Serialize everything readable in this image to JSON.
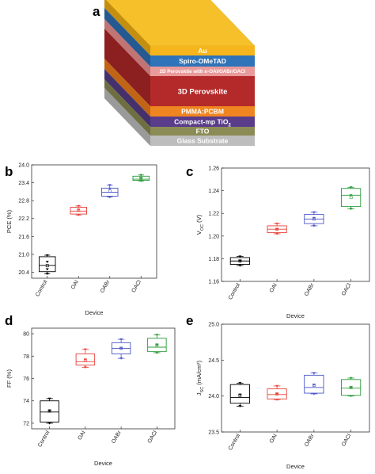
{
  "figure": {
    "panel_letters": [
      "a",
      "b",
      "c",
      "d",
      "e"
    ]
  },
  "stack": {
    "layers": [
      {
        "label": "Au",
        "front": "#f6b51c",
        "side": "#c48e10"
      },
      {
        "label": "Spiro-OMeTAD",
        "front": "#2f73b8",
        "side": "#245a91"
      },
      {
        "label": "2D Perovskite with n-OAI/OABr/OACl",
        "front": "#e99a9a",
        "side": "#c07474"
      },
      {
        "label": "3D Perovskite",
        "front": "#b42a2a",
        "side": "#8c1f1f"
      },
      {
        "label": "PMMA:PCBM",
        "front": "#ef8520",
        "side": "#c06515"
      },
      {
        "label": "Compact-mp TiO",
        "label_sub": "2",
        "front": "#5a3d8a",
        "side": "#44306a"
      },
      {
        "label": "FTO",
        "front": "#8b8b56",
        "side": "#6e6e42"
      },
      {
        "label": "Glass Substrate",
        "front": "#bdbdbd",
        "side": "#9a9a9a"
      }
    ]
  },
  "chart_data": [
    {
      "type": "box",
      "panel": "b",
      "xlabel": "Device",
      "ylabel": "PCE (%)",
      "ylim": [
        20.2,
        24.0
      ],
      "yticks": [
        "20.4",
        "21.0",
        "21.6",
        "22.2",
        "22.8",
        "23.4",
        "24.0"
      ],
      "categories": [
        "Control",
        "OAI",
        "OABr",
        "OACl"
      ],
      "colors": [
        "#000000",
        "#e8423a",
        "#4a55c8",
        "#2a9a3a"
      ],
      "boxes": [
        {
          "q1": 20.42,
          "median": 20.63,
          "q3": 20.92,
          "min": 20.35,
          "max": 20.97,
          "mean": 20.62,
          "points": [
            20.35,
            20.5,
            20.75,
            20.97
          ]
        },
        {
          "q1": 22.35,
          "median": 22.45,
          "q3": 22.58,
          "min": 22.32,
          "max": 22.62,
          "mean": 22.48,
          "points": [
            22.32,
            22.5,
            22.62
          ]
        },
        {
          "q1": 22.95,
          "median": 23.08,
          "q3": 23.22,
          "min": 22.92,
          "max": 23.32,
          "mean": 23.12,
          "points": [
            22.92,
            23.2,
            23.32
          ]
        },
        {
          "q1": 23.48,
          "median": 23.52,
          "q3": 23.62,
          "min": 23.46,
          "max": 23.66,
          "mean": 23.55,
          "points": [
            23.46,
            23.55,
            23.66
          ]
        }
      ]
    },
    {
      "type": "box",
      "panel": "c",
      "xlabel": "Device",
      "ylabel": "V",
      "ylabel_sub": "OC",
      "ylabel_tail": " (V)",
      "ylim": [
        1.16,
        1.26
      ],
      "yticks": [
        "1.16",
        "1.18",
        "1.20",
        "1.22",
        "1.24",
        "1.26"
      ],
      "categories": [
        "Control",
        "OAI",
        "OABr",
        "OACl"
      ],
      "colors": [
        "#000000",
        "#e8423a",
        "#4a55c8",
        "#2a9a3a"
      ],
      "boxes": [
        {
          "q1": 1.175,
          "median": 1.178,
          "q3": 1.181,
          "min": 1.174,
          "max": 1.182,
          "mean": 1.178,
          "points": [
            1.174,
            1.178,
            1.182
          ]
        },
        {
          "q1": 1.203,
          "median": 1.206,
          "q3": 1.209,
          "min": 1.202,
          "max": 1.211,
          "mean": 1.206,
          "points": [
            1.202,
            1.206,
            1.211
          ]
        },
        {
          "q1": 1.211,
          "median": 1.215,
          "q3": 1.219,
          "min": 1.209,
          "max": 1.221,
          "mean": 1.215,
          "points": [
            1.209,
            1.216,
            1.221
          ]
        },
        {
          "q1": 1.226,
          "median": 1.236,
          "q3": 1.242,
          "min": 1.224,
          "max": 1.243,
          "mean": 1.234,
          "points": [
            1.224,
            1.236,
            1.243
          ]
        }
      ]
    },
    {
      "type": "box",
      "panel": "d",
      "xlabel": "Device",
      "ylabel": "FF (%)",
      "ylim": [
        71.5,
        80.5
      ],
      "yticks": [
        "72",
        "74",
        "76",
        "78",
        "80"
      ],
      "categories": [
        "Control",
        "OAI",
        "OABr",
        "OACl"
      ],
      "colors": [
        "#000000",
        "#e8423a",
        "#4a55c8",
        "#2a9a3a"
      ],
      "boxes": [
        {
          "q1": 72.1,
          "median": 73.0,
          "q3": 74.0,
          "min": 72.0,
          "max": 74.2,
          "mean": 73.1,
          "points": [
            72.0,
            73.1,
            74.2
          ]
        },
        {
          "q1": 77.2,
          "median": 77.5,
          "q3": 78.2,
          "min": 77.0,
          "max": 78.6,
          "mean": 77.6,
          "points": [
            77.0,
            77.7,
            78.6
          ]
        },
        {
          "q1": 78.2,
          "median": 78.7,
          "q3": 79.2,
          "min": 77.8,
          "max": 79.5,
          "mean": 78.7,
          "points": [
            77.8,
            78.7,
            79.5
          ]
        },
        {
          "q1": 78.4,
          "median": 78.8,
          "q3": 79.6,
          "min": 78.3,
          "max": 79.9,
          "mean": 79.0,
          "points": [
            78.3,
            79.0,
            79.9
          ]
        }
      ]
    },
    {
      "type": "box",
      "panel": "e",
      "xlabel": "Device",
      "ylabel": "J",
      "ylabel_sub": "SC",
      "ylabel_tail": " (mA/cm²)",
      "ylim": [
        23.5,
        25.0
      ],
      "yticks": [
        "23.5",
        "24.0",
        "24.5",
        "25.0"
      ],
      "categories": [
        "Control",
        "OAI",
        "OABr",
        "OACl"
      ],
      "colors": [
        "#000000",
        "#e8423a",
        "#4a55c8",
        "#2a9a3a"
      ],
      "boxes": [
        {
          "q1": 23.9,
          "median": 23.98,
          "q3": 24.16,
          "min": 23.86,
          "max": 24.18,
          "mean": 24.01,
          "points": [
            23.86,
            24.02,
            24.18
          ]
        },
        {
          "q1": 23.96,
          "median": 24.02,
          "q3": 24.1,
          "min": 23.95,
          "max": 24.14,
          "mean": 24.03,
          "points": [
            23.95,
            24.03,
            24.14
          ]
        },
        {
          "q1": 24.04,
          "median": 24.12,
          "q3": 24.29,
          "min": 24.03,
          "max": 24.32,
          "mean": 24.15,
          "points": [
            24.03,
            24.16,
            24.32
          ]
        },
        {
          "q1": 24.01,
          "median": 24.11,
          "q3": 24.23,
          "min": 24.0,
          "max": 24.25,
          "mean": 24.12,
          "points": [
            24.0,
            24.12,
            24.25
          ]
        }
      ]
    }
  ]
}
